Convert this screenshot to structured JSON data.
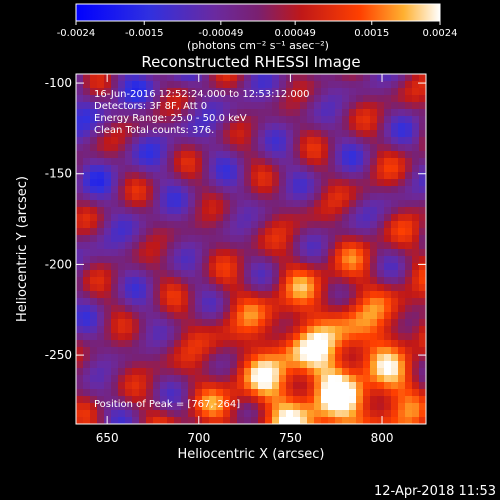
{
  "chart_data": {
    "type": "heatmap",
    "title": "Reconstructed RHESSI Image",
    "xlabel": "Heliocentric X (arcsec)",
    "ylabel": "Heliocentric Y (arcsec)",
    "xlim": [
      633,
      824
    ],
    "ylim": [
      -288,
      -95
    ],
    "x_ticks": [
      650,
      700,
      750,
      800
    ],
    "x_tick_labels": [
      "650",
      "700",
      "750",
      "800"
    ],
    "y_ticks": [
      -100,
      -150,
      -200,
      -250
    ],
    "y_tick_labels": [
      "-100",
      "-150",
      "-200",
      "-250"
    ],
    "colorbar": {
      "range": [
        -0.0024,
        0.0024
      ],
      "ticks": [
        -0.0024,
        -0.0015,
        -0.00049,
        0.00049,
        0.0015,
        0.0024
      ],
      "tick_labels": [
        "-0.0024",
        "-0.0015",
        "-0.00049",
        "0.00049",
        "0.0015",
        "0.0024"
      ],
      "unit_label": "(photons cm⁻² s⁻¹ asec⁻²)"
    },
    "annotations": {
      "time_range": "16-Jun-2016 12:52:24.000 to 12:53:12.000",
      "detectors": "Detectors: 3F 8F, Att 0",
      "energy_range": "Energy Range: 25.0 - 50.0 keV",
      "clean_counts": "Clean     Total counts: 376.",
      "peak": "Position of Peak = [767,-264]"
    },
    "peak": {
      "x": 767,
      "y": -264
    }
  },
  "footer": {
    "timestamp": "12-Apr-2018 11:53"
  }
}
